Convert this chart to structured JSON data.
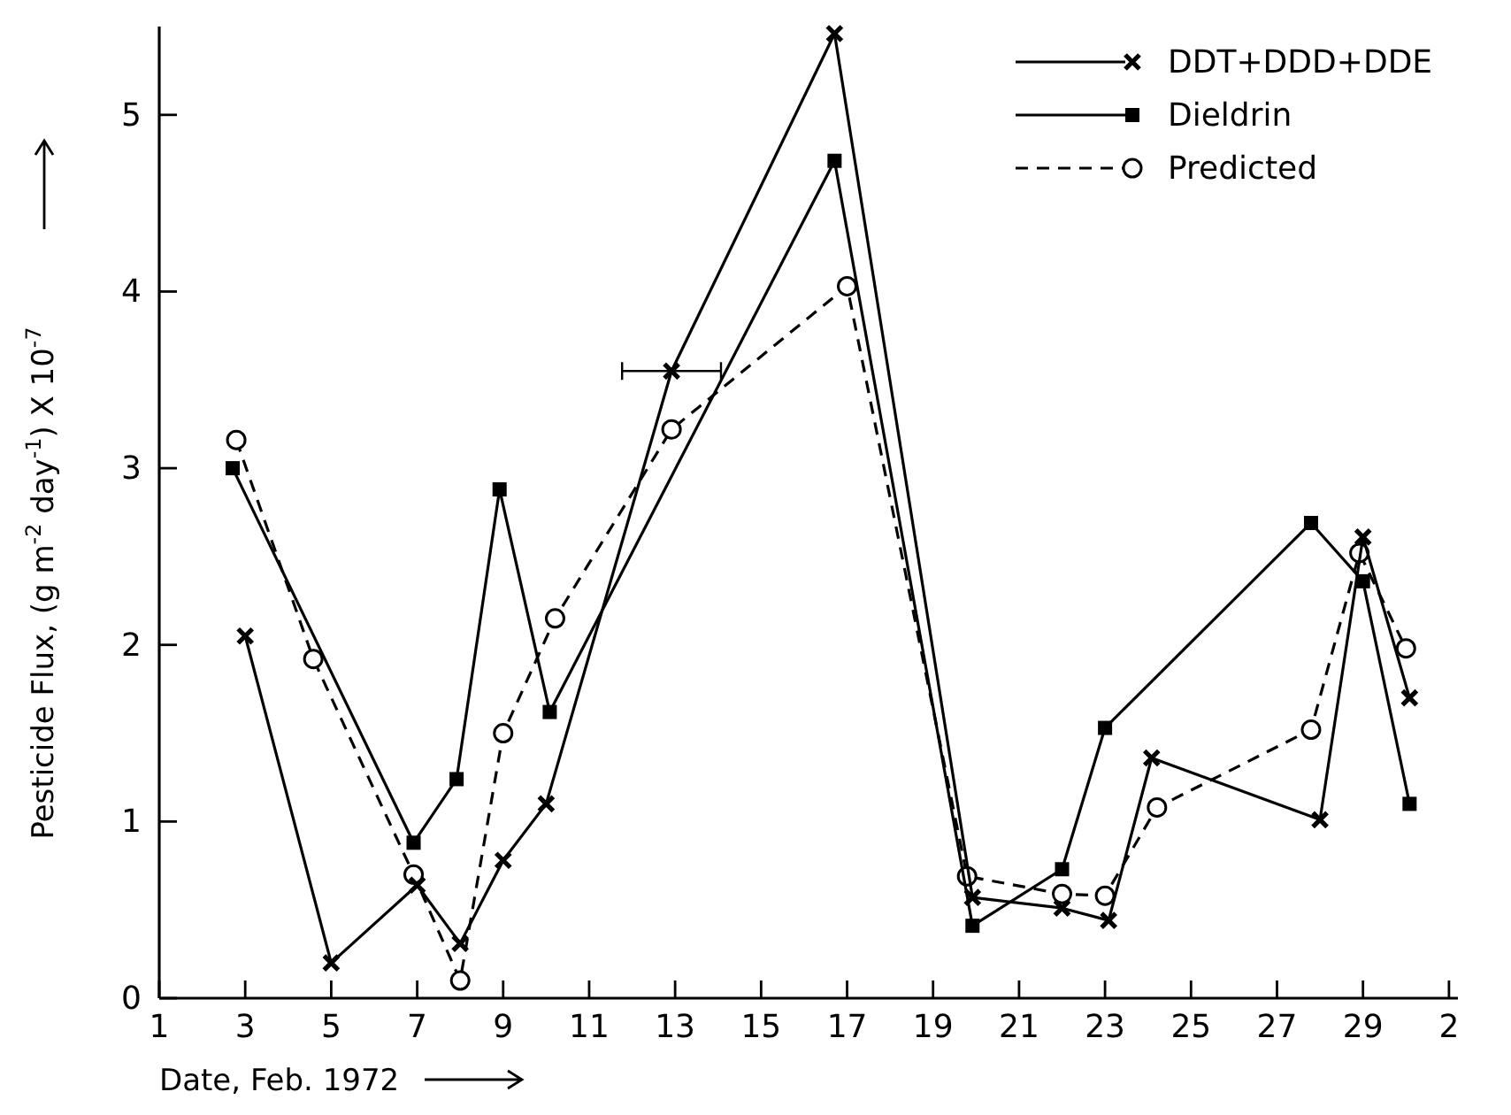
{
  "chart_data": {
    "type": "line",
    "xlabel": "Date, Feb. 1972",
    "ylabel": "Pesticide Flux, (g m$^{-2}$ day$^{-1}$) X 10$^{-7}$",
    "xlim": [
      "1972-02-01",
      "1972-03-02T05:00"
    ],
    "ylim": [
      0,
      5.5
    ],
    "xticks": [
      {
        "value": "1972-02-01",
        "label": "1"
      },
      {
        "value": "1972-02-03",
        "label": "3"
      },
      {
        "value": "1972-02-05",
        "label": "5"
      },
      {
        "value": "1972-02-07",
        "label": "7"
      },
      {
        "value": "1972-02-09",
        "label": "9"
      },
      {
        "value": "1972-02-11",
        "label": "11"
      },
      {
        "value": "1972-02-13",
        "label": "13"
      },
      {
        "value": "1972-02-15",
        "label": "15"
      },
      {
        "value": "1972-02-17",
        "label": "17"
      },
      {
        "value": "1972-02-19",
        "label": "19"
      },
      {
        "value": "1972-02-21",
        "label": "21"
      },
      {
        "value": "1972-02-23",
        "label": "23"
      },
      {
        "value": "1972-02-25",
        "label": "25"
      },
      {
        "value": "1972-02-27",
        "label": "27"
      },
      {
        "value": "1972-02-29",
        "label": "29"
      },
      {
        "value": "1972-03-02",
        "label": "2"
      }
    ],
    "yticks": [
      0,
      1,
      2,
      3,
      4,
      5
    ],
    "grid": false,
    "legend": "top right",
    "series": [
      {
        "name": "DDT+DDD+DDE",
        "color": "#000000",
        "marker": "cross",
        "line_style": "solid",
        "x": [
          "1972-02-03",
          "1972-02-05",
          "1972-02-07",
          "1972-02-08",
          "1972-02-09",
          "1972-02-10",
          "1972-02-12T22:00",
          "1972-02-16T17:00",
          "1972-02-19T22:00",
          "1972-02-22",
          "1972-02-23T02:00",
          "1972-02-24T02:00",
          "1972-02-28",
          "1972-02-29",
          "1972-03-01T02:00"
        ],
        "values": [
          2.05,
          0.2,
          0.64,
          0.31,
          0.78,
          1.1,
          3.55,
          5.46,
          0.57,
          0.51,
          0.44,
          1.36,
          1.01,
          2.61,
          1.7
        ],
        "xerrors": [
          null,
          null,
          null,
          null,
          null,
          null,
          1.15,
          null,
          null,
          null,
          null,
          null,
          null,
          null,
          null
        ]
      },
      {
        "name": "Dieldrin",
        "color": "#000000",
        "marker": "square",
        "line_style": "solid",
        "x": [
          "1972-02-02T17:00",
          "1972-02-06T22:00",
          "1972-02-07T22:00",
          "1972-02-08T22:00",
          "1972-02-10T02:00",
          "1972-02-16T17:00",
          "1972-02-19T22:00",
          "1972-02-22",
          "1972-02-23",
          "1972-02-27T19:00",
          "1972-02-29",
          "1972-03-01T02:00"
        ],
        "values": [
          3.0,
          0.88,
          1.24,
          2.88,
          1.62,
          4.74,
          0.41,
          0.73,
          1.53,
          2.69,
          2.36,
          1.1
        ]
      },
      {
        "name": "Predicted",
        "color": "#000000",
        "marker": "circle",
        "line_style": "dashed",
        "x": [
          "1972-02-02T19:00",
          "1972-02-04T14:00",
          "1972-02-06T22:00",
          "1972-02-08",
          "1972-02-09",
          "1972-02-10T05:00",
          "1972-02-12T22:00",
          "1972-02-17",
          "1972-02-19T19:00",
          "1972-02-22",
          "1972-02-23",
          "1972-02-24T05:00",
          "1972-02-27T19:00",
          "1972-02-28T22:00",
          "1972-03-01"
        ],
        "values": [
          3.16,
          1.92,
          0.7,
          0.1,
          1.5,
          2.15,
          3.22,
          4.03,
          0.69,
          0.59,
          0.58,
          1.08,
          1.52,
          2.52,
          1.98
        ]
      }
    ]
  }
}
